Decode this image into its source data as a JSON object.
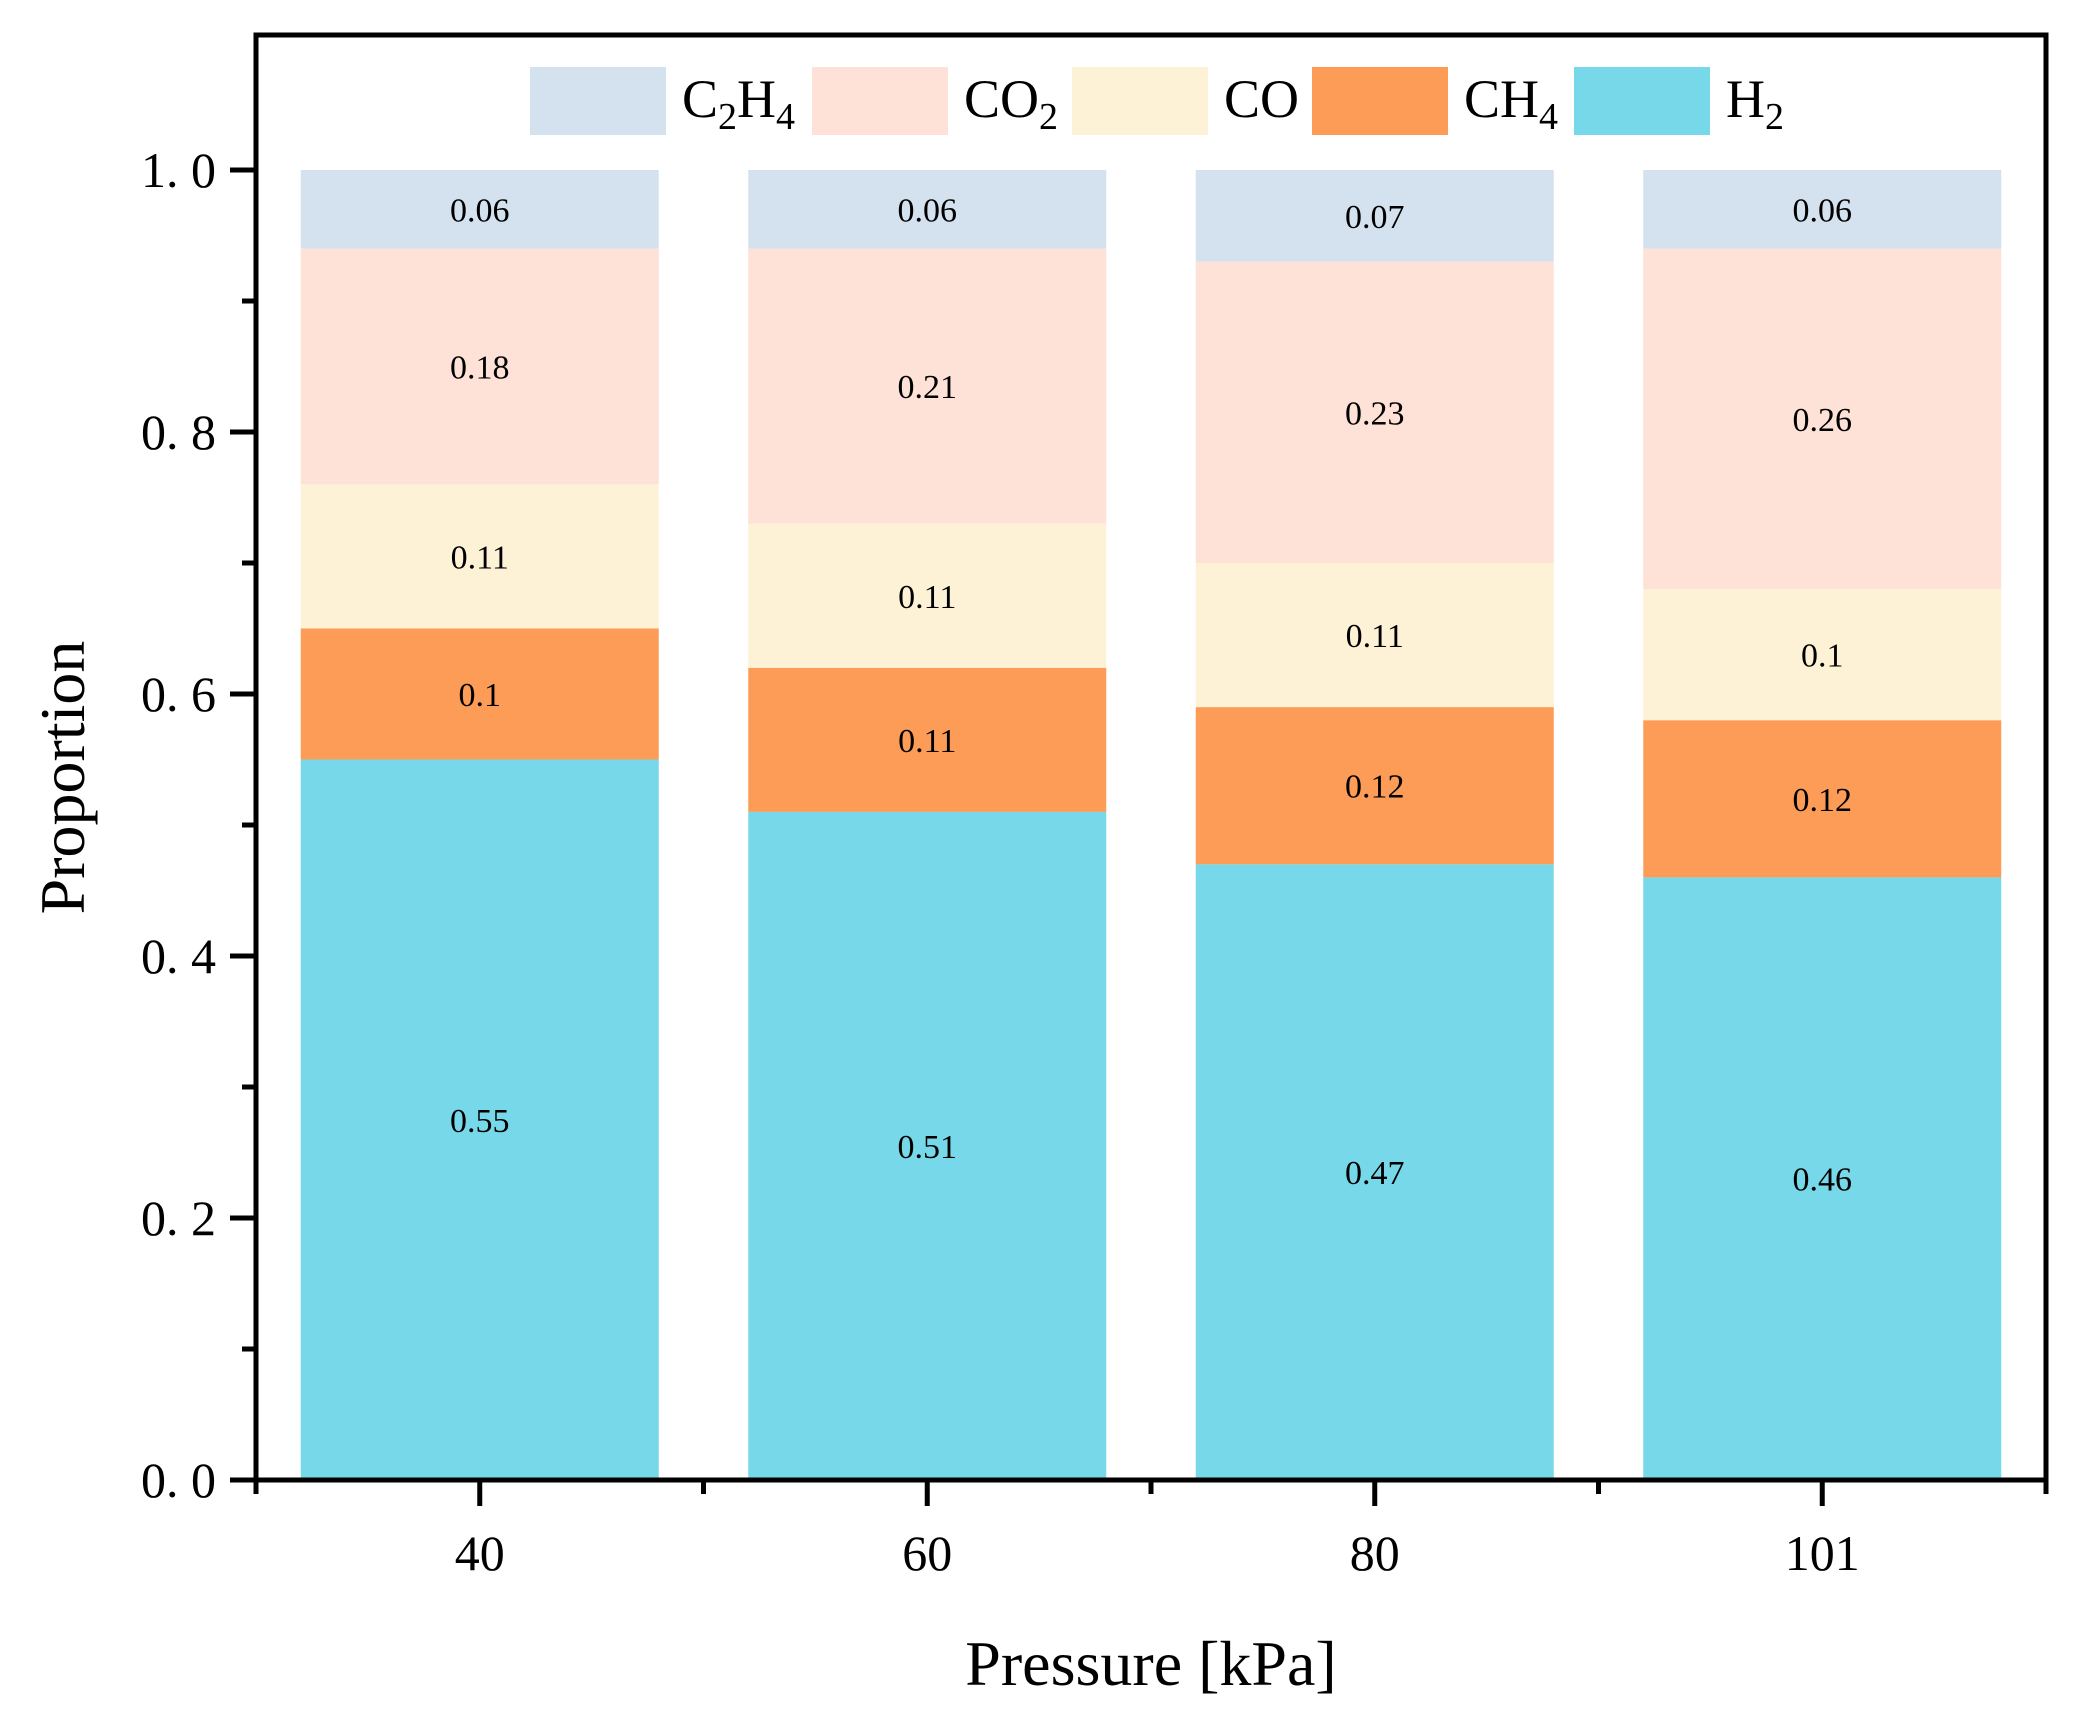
{
  "chart_data": {
    "type": "bar",
    "stacked": true,
    "title": "",
    "xlabel": "Pressure [kPa]",
    "ylabel": "Proportion",
    "categories": [
      "40",
      "60",
      "80",
      "101"
    ],
    "ylim": [
      0,
      1.1
    ],
    "yticks": [
      "0. 0",
      "0. 2",
      "0. 4",
      "0. 6",
      "0. 8",
      "1. 0"
    ],
    "grid": false,
    "legend_position": "top",
    "series": [
      {
        "name": "H",
        "sub": "2",
        "color": "#76d8e8",
        "values": [
          0.55,
          0.51,
          0.47,
          0.46
        ],
        "labels": [
          "0.55",
          "0.51",
          "0.47",
          "0.46"
        ]
      },
      {
        "name": "CH",
        "sub": "4",
        "color": "#fc9c56",
        "values": [
          0.1,
          0.11,
          0.12,
          0.12
        ],
        "labels": [
          "0.1",
          "0.11",
          "0.12",
          "0.12"
        ]
      },
      {
        "name": "CO",
        "sub": "",
        "color": "#fdf2d6",
        "values": [
          0.11,
          0.11,
          0.11,
          0.1
        ],
        "labels": [
          "0.11",
          "0.11",
          "0.11",
          "0.1"
        ]
      },
      {
        "name": "CO",
        "sub": "2",
        "color": "#fee2d7",
        "values": [
          0.18,
          0.21,
          0.23,
          0.26
        ],
        "labels": [
          "0.18",
          "0.21",
          "0.23",
          "0.26"
        ]
      },
      {
        "name": "C",
        "sub": "2",
        "name2": "H",
        "sub2": "4",
        "color": "#d4e2f0",
        "values": [
          0.06,
          0.06,
          0.07,
          0.06
        ],
        "labels": [
          "0.06",
          "0.06",
          "0.07",
          "0.06"
        ]
      }
    ],
    "legend_order": [
      4,
      3,
      2,
      1,
      0
    ]
  }
}
